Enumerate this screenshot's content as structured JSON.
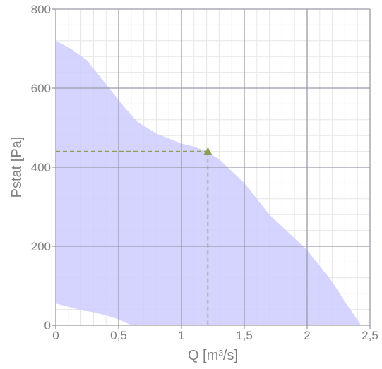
{
  "chart_data": {
    "type": "area",
    "title": "",
    "xlabel": "Q [m³/s]",
    "ylabel": "Pstat [Pa]",
    "xlim": [
      0,
      2.5
    ],
    "ylim": [
      0,
      800
    ],
    "x_ticks": [
      0,
      0.5,
      1,
      1.5,
      2,
      2.5
    ],
    "x_tick_labels": [
      "0",
      "0,5",
      "1",
      "1,5",
      "2",
      "2,5"
    ],
    "y_ticks": [
      0,
      200,
      400,
      600,
      800
    ],
    "y_tick_labels": [
      "0",
      "200",
      "400",
      "600",
      "800"
    ],
    "grid": true,
    "minor_grid_per_major": 5,
    "operating_range": {
      "upper": [
        [
          0,
          720
        ],
        [
          0.12,
          700
        ],
        [
          0.25,
          670
        ],
        [
          0.35,
          630
        ],
        [
          0.45,
          590
        ],
        [
          0.55,
          550
        ],
        [
          0.65,
          515
        ],
        [
          0.8,
          485
        ],
        [
          1.0,
          460
        ],
        [
          1.1,
          452
        ],
        [
          1.2,
          440
        ],
        [
          1.3,
          420
        ],
        [
          1.5,
          360
        ],
        [
          1.7,
          280
        ],
        [
          1.9,
          220
        ],
        [
          2.0,
          190
        ],
        [
          2.1,
          150
        ],
        [
          2.2,
          110
        ],
        [
          2.3,
          60
        ],
        [
          2.43,
          0
        ]
      ],
      "lower": [
        [
          0,
          55
        ],
        [
          0.1,
          47
        ],
        [
          0.2,
          38
        ],
        [
          0.3,
          33
        ],
        [
          0.4,
          25
        ],
        [
          0.5,
          15
        ],
        [
          0.6,
          0
        ]
      ]
    },
    "operating_point": {
      "x": 1.21,
      "y": 440
    },
    "colors": {
      "range_fill": "#ccccff",
      "major_grid": "#9a9aa8",
      "minor_grid": "#e6e6e6",
      "axis": "#9a9a9a",
      "operating_point": "#8f9e55",
      "text": "#808080"
    }
  }
}
